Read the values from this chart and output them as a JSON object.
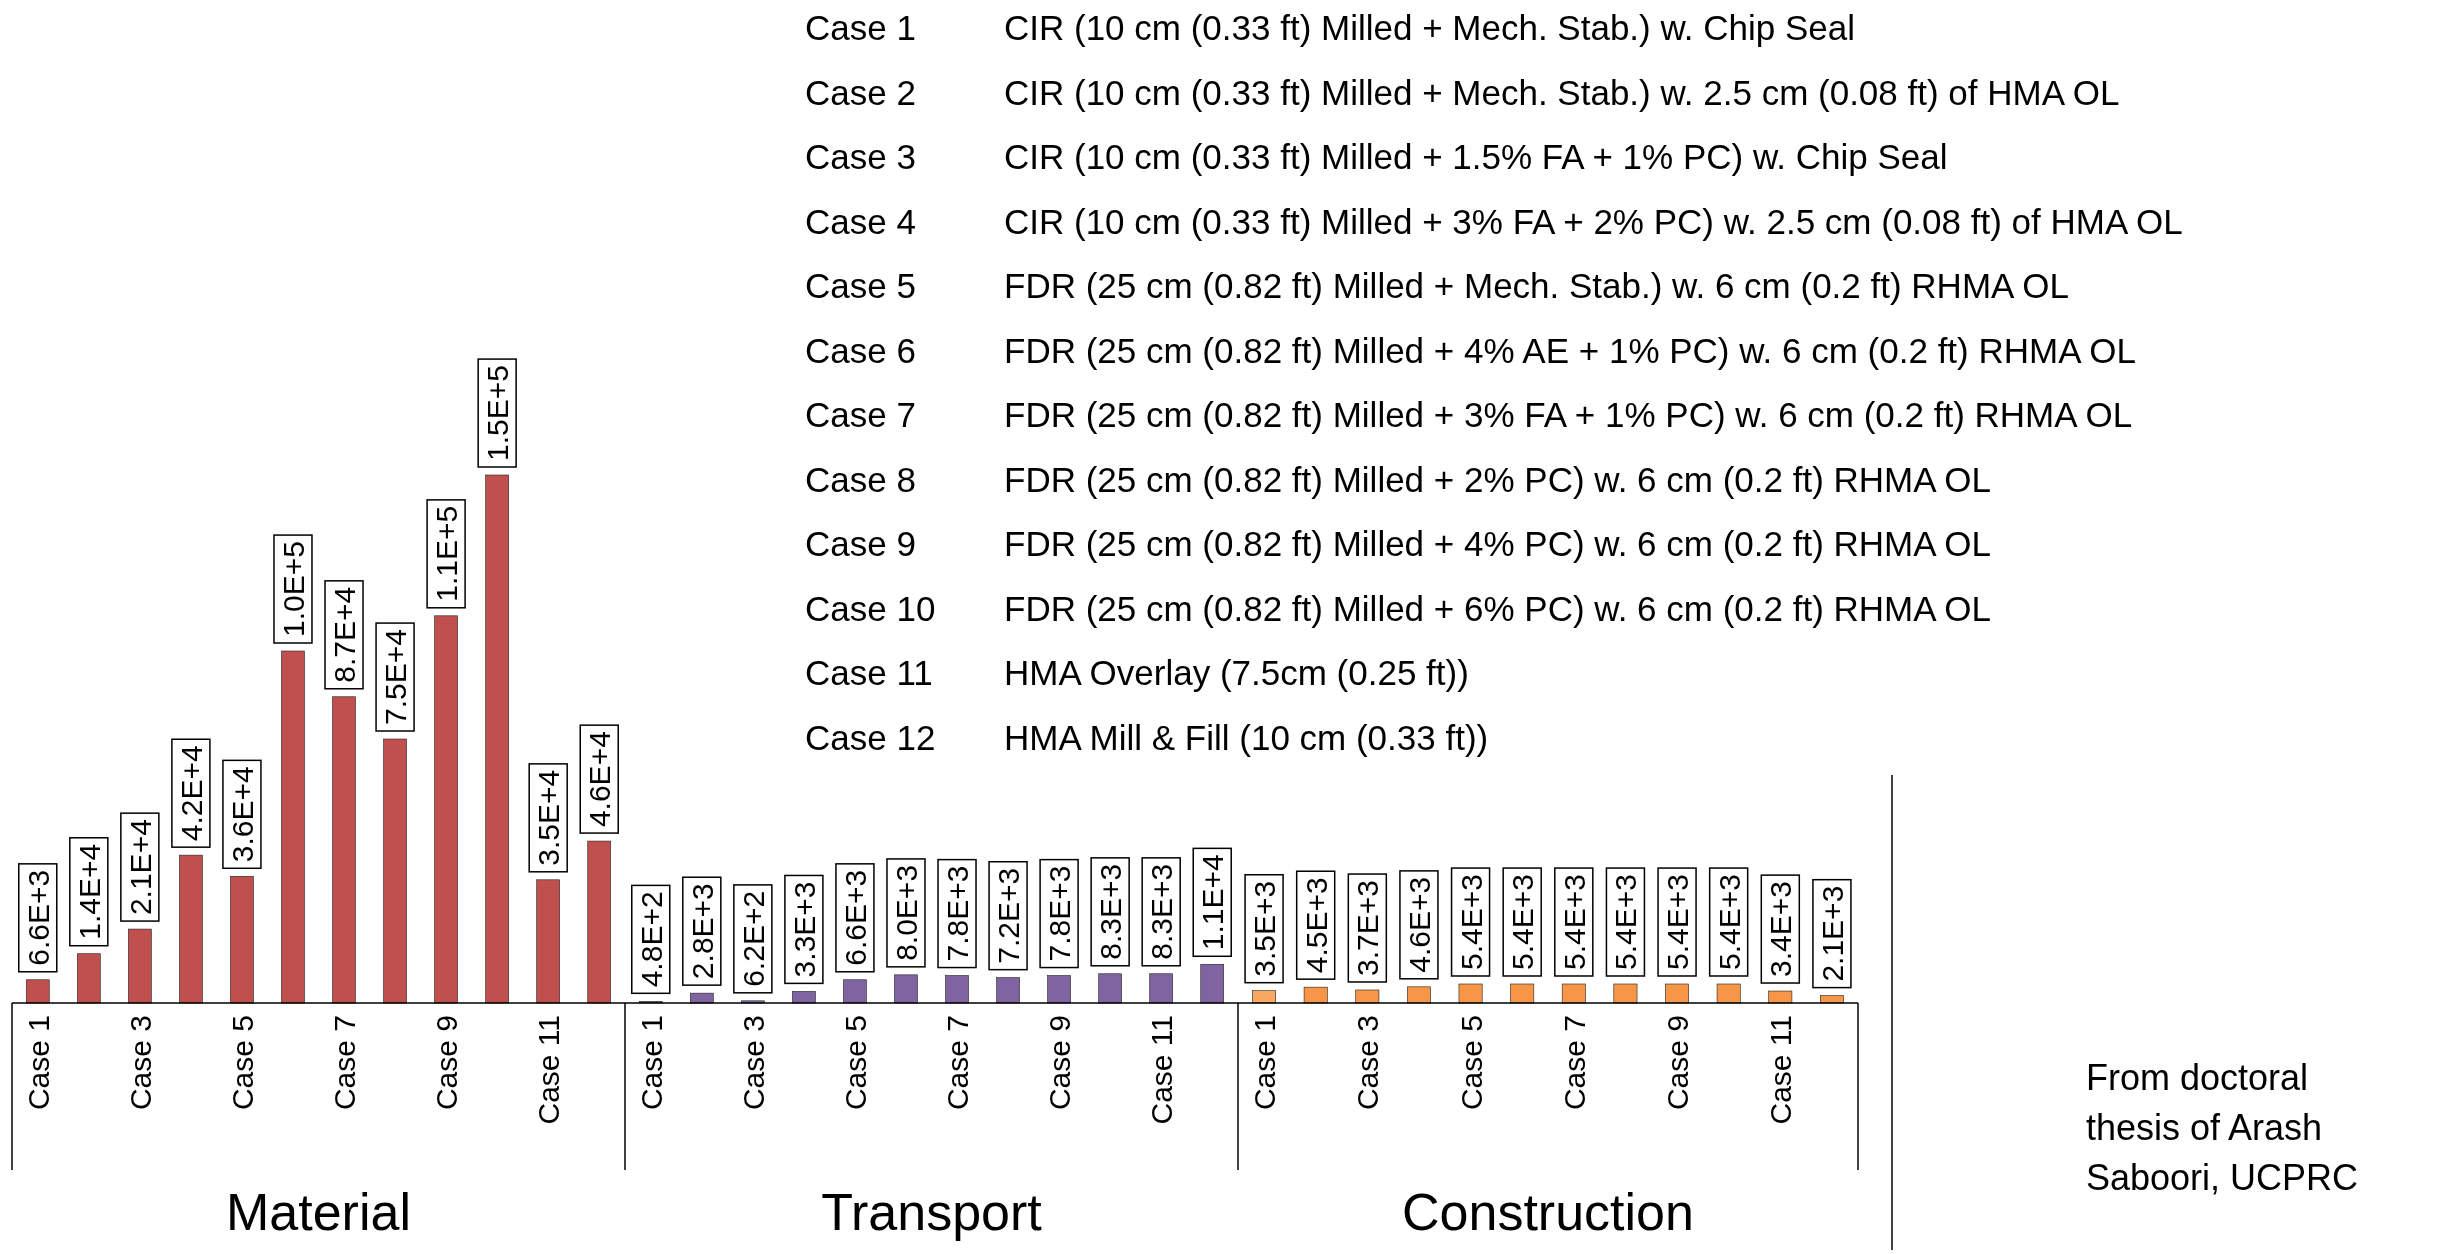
{
  "chart_data": [
    {
      "type": "bar",
      "xlabel": "Material",
      "categories": [
        "Case 1",
        null,
        "Case 3",
        null,
        "Case 5",
        null,
        "Case 7",
        null,
        "Case 9",
        null,
        "Case 11",
        null
      ],
      "values": [
        6600,
        14000,
        21000,
        42000,
        36000,
        100000,
        87000,
        75000,
        110000,
        150000,
        35000,
        46000
      ],
      "value_labels": [
        "6.6E+3",
        "1.4E+4",
        "2.1E+4",
        "4.2E+4",
        "3.6E+4",
        "1.0E+5",
        "8.7E+4",
        "7.5E+4",
        "1.1E+5",
        "1.5E+5",
        "3.5E+4",
        "4.6E+4"
      ],
      "color": "#c0504d",
      "annotations": [
        "Case 1",
        "CIR (10 cm (0.33 ft) Milled + Mech. Stab.) w. Chip Seal",
        "Case 2",
        "CIR (10 cm (0.33 ft) Milled + Mech. Stab.) w. 2.5 cm (0.08 ft) of HMA OL",
        "Case 3",
        "CIR (10 cm (0.33 ft) Milled + 1.5% FA + 1% PC) w. Chip Seal",
        "Case 4",
        "CIR (10 cm (0.33 ft) Milled + 3% FA + 2% PC) w. 2.5 cm (0.08 ft) of HMA OL",
        "Case 5",
        "FDR (25 cm (0.82 ft) Milled + Mech. Stab.) w. 6 cm (0.2 ft) RHMA OL",
        "Case 6",
        "FDR (25 cm (0.82 ft) Milled + 4% AE + 1% PC) w. 6 cm (0.2 ft) RHMA OL",
        "Case 7",
        "FDR (25 cm (0.82 ft) Milled + 3% FA + 1% PC) w. 6 cm (0.2 ft) RHMA OL",
        "Case 8",
        "FDR (25 cm (0.82 ft) Milled + 2% PC) w. 6 cm (0.2 ft) RHMA OL",
        "Case 9",
        "FDR (25 cm (0.82 ft) Milled + 4% PC) w. 6 cm (0.2 ft) RHMA OL",
        "Case 10",
        "FDR (25 cm (0.82 ft) Milled + 6% PC) w. 6 cm (0.2 ft) RHMA OL",
        "Case 11",
        "HMA Overlay (7.5cm (0.25 ft))",
        "Case 12",
        "HMA Mill & Fill (10 cm (0.33 ft))"
      ]
    },
    {
      "type": "bar",
      "xlabel": "Transport",
      "categories": [
        "Case 1",
        null,
        "Case 3",
        null,
        "Case 5",
        null,
        "Case 7",
        null,
        "Case 9",
        null,
        "Case 11",
        null
      ],
      "values": [
        480,
        2800,
        620,
        3300,
        6600,
        8000,
        7800,
        7200,
        7800,
        8300,
        8300,
        11000
      ],
      "value_labels": [
        "4.8E+2",
        "2.8E+3",
        "6.2E+2",
        "3.3E+3",
        "6.6E+3",
        "8.0E+3",
        "7.8E+3",
        "7.2E+3",
        "7.8E+3",
        "8.3E+3",
        "8.3E+3",
        "1.1E+4"
      ],
      "color": "#8064a2"
    },
    {
      "type": "bar",
      "xlabel": "Construction",
      "categories": [
        "Case 1",
        null,
        "Case 3",
        null,
        "Case 5",
        null,
        "Case 7",
        null,
        "Case 9",
        null,
        "Case 11",
        null
      ],
      "values": [
        3500,
        4500,
        3700,
        4600,
        5400,
        5400,
        5400,
        5400,
        5400,
        5400,
        3400,
        2100
      ],
      "value_labels": [
        "3.5E+3",
        "4.5E+3",
        "3.7E+3",
        "4.6E+3",
        "5.4E+3",
        "5.4E+3",
        "5.4E+3",
        "5.4E+3",
        "5.4E+3",
        "5.4E+3",
        "3.4E+3",
        "2.1E+3"
      ],
      "colors": [
        "#f9a862",
        "#f79646",
        "#f79646",
        "#f79646",
        "#f79646",
        "#f79646",
        "#f79646",
        "#f79646",
        "#f79646",
        "#f79646",
        "#f79646",
        "#f79646"
      ],
      "annotations": [
        "From doctoral thesis of Arash Saboori, UCPRC"
      ]
    }
  ]
}
